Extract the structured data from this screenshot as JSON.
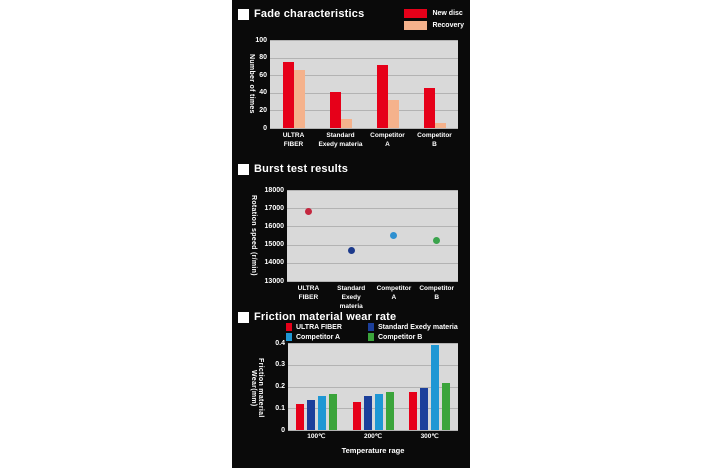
{
  "chart_data": [
    {
      "type": "bar",
      "title": "Fade characteristics",
      "ylabel": "Number of times",
      "xlabel": "",
      "ylim": [
        0,
        100
      ],
      "yticks": [
        100,
        80,
        60,
        40,
        20,
        0
      ],
      "grid": true,
      "plot_bg": "#d9d9d9",
      "legend_position": "top-right",
      "categories": [
        "ULTRA\nFIBER",
        "Standard\nExedy materia",
        "Competitor\nA",
        "Competitor\nB"
      ],
      "series": [
        {
          "name": "New disc",
          "color": "#e60019",
          "values": [
            75,
            41,
            72,
            45
          ]
        },
        {
          "name": "Recovery",
          "color": "#f5b28c",
          "values": [
            66,
            10,
            32,
            6
          ]
        }
      ]
    },
    {
      "type": "scatter",
      "title": "Burst test results",
      "ylabel": "Rotation speed (r/min)",
      "xlabel": "",
      "ylim": [
        13000,
        18000
      ],
      "yticks": [
        18000,
        17000,
        16000,
        15000,
        14000,
        13000
      ],
      "grid": true,
      "plot_bg": "#d9d9d9",
      "legend_position": "none",
      "categories": [
        "ULTRA\nFIBER",
        "Standard\nExedy materia",
        "Competitor\nA",
        "Competitor\nB"
      ],
      "points": [
        {
          "name": "ULTRA FIBER",
          "color": "#c4273f",
          "value": 16800
        },
        {
          "name": "Standard Exedy materia",
          "color": "#1c3a8c",
          "value": 14700
        },
        {
          "name": "Competitor A",
          "color": "#2e90d0",
          "value": 15500
        },
        {
          "name": "Competitor B",
          "color": "#3ba44d",
          "value": 15250
        }
      ]
    },
    {
      "type": "bar",
      "title": "Friction material wear rate",
      "ylabel": "Friction material Wear(mm)",
      "xlabel": "Temperature rage",
      "ylim": [
        0,
        0.4
      ],
      "yticks": [
        0.4,
        0.3,
        0.2,
        0.1,
        0
      ],
      "grid": true,
      "plot_bg": "#d9d9d9",
      "legend_position": "top",
      "categories": [
        "100℃",
        "200℃",
        "300℃"
      ],
      "series": [
        {
          "name": "ULTRA FIBER",
          "color": "#e60019",
          "values": [
            0.12,
            0.13,
            0.175
          ]
        },
        {
          "name": "Standard Exedy materia",
          "color": "#1c3f9b",
          "values": [
            0.14,
            0.155,
            0.195
          ]
        },
        {
          "name": "Competitor A",
          "color": "#1f97d4",
          "values": [
            0.155,
            0.165,
            0.39
          ]
        },
        {
          "name": "Competitor B",
          "color": "#3ba43b",
          "values": [
            0.165,
            0.175,
            0.215
          ]
        }
      ]
    }
  ]
}
